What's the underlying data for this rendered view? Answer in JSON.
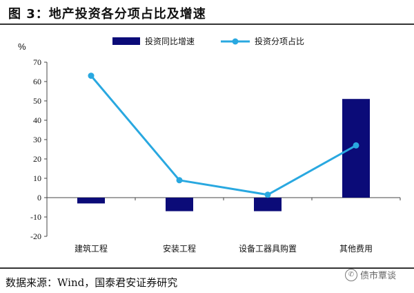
{
  "header": {
    "title": "图 3：地产投资各分项占比及增速"
  },
  "footer": {
    "source": "数据来源：Wind，国泰君安证券研究"
  },
  "watermark": {
    "text": "债市覃谈",
    "icon": "wechat-icon"
  },
  "chart_data": {
    "type": "bar",
    "ylabel": "%",
    "ylim": [
      -20,
      70
    ],
    "yticks": [
      -20,
      -10,
      0,
      10,
      20,
      30,
      40,
      50,
      60,
      70
    ],
    "categories": [
      "建筑工程",
      "安装工程",
      "设备工器具购置",
      "其他费用"
    ],
    "legend_position": "top",
    "grid": false,
    "series": [
      {
        "name": "投资同比增速",
        "type": "bar",
        "color": "#0b0b78",
        "values": [
          -3,
          -7,
          -7,
          51
        ]
      },
      {
        "name": "投资分项占比",
        "type": "line",
        "color": "#29a8e0",
        "values": [
          63,
          9,
          1.5,
          27
        ]
      }
    ]
  }
}
